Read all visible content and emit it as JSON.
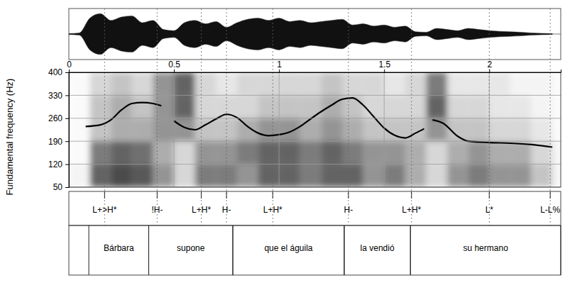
{
  "chart_data": {
    "type": "line",
    "y_label": "Fundamental frequency (Hz)",
    "color": "#000000",
    "grid": true,
    "xlim": [
      0,
      2.34
    ],
    "ylim": [
      50,
      400
    ],
    "xticks": [
      0,
      0.5,
      1,
      1.5,
      2
    ],
    "yticks": [
      50,
      120,
      190,
      260,
      330,
      400
    ],
    "x": [
      0.08,
      0.15,
      0.2,
      0.25,
      0.3,
      0.35,
      0.4,
      0.44,
      0.47,
      0.5,
      0.55,
      0.6,
      0.65,
      0.7,
      0.75,
      0.8,
      0.85,
      0.9,
      0.95,
      1.0,
      1.05,
      1.1,
      1.15,
      1.2,
      1.25,
      1.3,
      1.35,
      1.4,
      1.45,
      1.5,
      1.55,
      1.6,
      1.65,
      1.69,
      1.71,
      1.73,
      1.78,
      1.85,
      1.9,
      2.0,
      2.1,
      2.2,
      2.3
    ],
    "values": [
      235,
      240,
      255,
      285,
      305,
      308,
      305,
      298,
      null,
      252,
      232,
      225,
      240,
      258,
      272,
      262,
      235,
      215,
      207,
      210,
      218,
      235,
      258,
      280,
      300,
      318,
      322,
      300,
      265,
      230,
      208,
      200,
      215,
      228,
      null,
      255,
      245,
      205,
      190,
      186,
      184,
      180,
      172
    ],
    "waveform": {
      "x": [
        0,
        0.05,
        0.1,
        0.15,
        0.2,
        0.25,
        0.3,
        0.35,
        0.4,
        0.45,
        0.5,
        0.55,
        0.6,
        0.65,
        0.7,
        0.75,
        0.8,
        0.85,
        0.9,
        0.95,
        1.0,
        1.05,
        1.1,
        1.15,
        1.2,
        1.25,
        1.3,
        1.35,
        1.4,
        1.45,
        1.5,
        1.55,
        1.6,
        1.65,
        1.7,
        1.75,
        1.8,
        1.85,
        1.9,
        1.95,
        2.0,
        2.05,
        2.1,
        2.15,
        2.2,
        2.25,
        2.3
      ],
      "amplitude": [
        0.02,
        0.05,
        0.7,
        0.9,
        0.6,
        0.75,
        0.8,
        0.5,
        0.6,
        0.2,
        0.15,
        0.5,
        0.6,
        0.45,
        0.55,
        0.3,
        0.5,
        0.65,
        0.7,
        0.6,
        0.7,
        0.55,
        0.6,
        0.5,
        0.55,
        0.6,
        0.65,
        0.4,
        0.45,
        0.35,
        0.4,
        0.3,
        0.35,
        0.1,
        0.08,
        0.25,
        0.2,
        0.15,
        0.25,
        0.2,
        0.15,
        0.12,
        0.1,
        0.08,
        0.05,
        0.03,
        0.02
      ]
    },
    "spectrogram": {
      "x": [
        0,
        0.1,
        0.2,
        0.3,
        0.4,
        0.5,
        0.6,
        0.7,
        0.8,
        0.9,
        1.0,
        1.1,
        1.2,
        1.3,
        1.4,
        1.5,
        1.6,
        1.7,
        1.8,
        1.9,
        2.0,
        2.1,
        2.2,
        2.3,
        2.34
      ],
      "bands": [
        50,
        120,
        190,
        260,
        330,
        400
      ],
      "intensity": [
        [
          0.1,
          0.05,
          0.05,
          0.05,
          0.05
        ],
        [
          0.8,
          0.7,
          0.4,
          0.4,
          0.3
        ],
        [
          0.9,
          0.8,
          0.5,
          0.5,
          0.4
        ],
        [
          0.85,
          0.75,
          0.5,
          0.4,
          0.3
        ],
        [
          0.6,
          0.5,
          0.6,
          0.6,
          0.6
        ],
        [
          0.3,
          0.3,
          0.6,
          0.8,
          0.8
        ],
        [
          0.7,
          0.6,
          0.4,
          0.3,
          0.3
        ],
        [
          0.7,
          0.6,
          0.4,
          0.3,
          0.2
        ],
        [
          0.6,
          0.7,
          0.5,
          0.3,
          0.3
        ],
        [
          0.8,
          0.8,
          0.6,
          0.4,
          0.3
        ],
        [
          0.8,
          0.8,
          0.6,
          0.4,
          0.3
        ],
        [
          0.7,
          0.7,
          0.5,
          0.4,
          0.3
        ],
        [
          0.8,
          0.8,
          0.6,
          0.5,
          0.4
        ],
        [
          0.8,
          0.7,
          0.5,
          0.4,
          0.3
        ],
        [
          0.6,
          0.6,
          0.4,
          0.3,
          0.3
        ],
        [
          0.7,
          0.6,
          0.4,
          0.3,
          0.2
        ],
        [
          0.5,
          0.5,
          0.4,
          0.3,
          0.3
        ],
        [
          0.3,
          0.3,
          0.6,
          0.8,
          0.7
        ],
        [
          0.6,
          0.5,
          0.4,
          0.3,
          0.2
        ],
        [
          0.7,
          0.6,
          0.4,
          0.3,
          0.2
        ],
        [
          0.6,
          0.5,
          0.3,
          0.2,
          0.2
        ],
        [
          0.6,
          0.5,
          0.3,
          0.2,
          0.1
        ],
        [
          0.4,
          0.3,
          0.2,
          0.1,
          0.1
        ],
        [
          0.1,
          0.1,
          0.05,
          0.05,
          0.05
        ]
      ]
    },
    "tones": [
      {
        "time": 0.17,
        "label": "L+>H*"
      },
      {
        "time": 0.42,
        "label": "!H-"
      },
      {
        "time": 0.63,
        "label": "L+H*"
      },
      {
        "time": 0.75,
        "label": "H-"
      },
      {
        "time": 0.97,
        "label": "L+H*"
      },
      {
        "time": 1.33,
        "label": "H-"
      },
      {
        "time": 1.63,
        "label": "L+H*"
      },
      {
        "time": 2.0,
        "label": "L*"
      },
      {
        "time": 2.29,
        "label": "L-L%"
      }
    ],
    "words": [
      {
        "start": 0.095,
        "end": 0.38,
        "label": "Bárbara"
      },
      {
        "start": 0.38,
        "end": 0.78,
        "label": "supone"
      },
      {
        "start": 0.78,
        "end": 1.31,
        "label": "que el águila"
      },
      {
        "start": 1.31,
        "end": 1.625,
        "label": "la vendió"
      },
      {
        "start": 1.625,
        "end": 2.34,
        "label": "su hermano"
      }
    ]
  }
}
